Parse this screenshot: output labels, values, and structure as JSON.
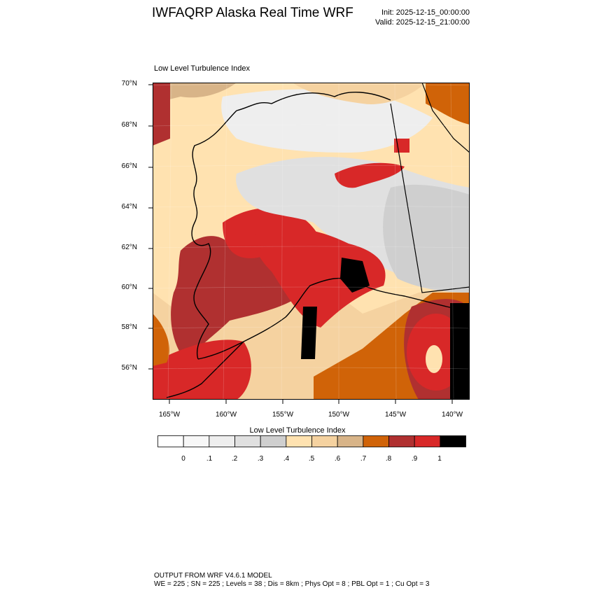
{
  "header": {
    "title": "IWFAQRP Alaska Real Time WRF",
    "init": "Init: 2025-12-15_00:00:00",
    "valid": "Valid: 2025-12-15_21:00:00"
  },
  "map": {
    "title": "Low Level Turbulence Index",
    "lat_labels": [
      "70°N",
      "68°N",
      "66°N",
      "64°N",
      "62°N",
      "60°N",
      "58°N",
      "56°N"
    ],
    "lon_labels": [
      "165°W",
      "160°W",
      "155°W",
      "150°W",
      "145°W",
      "140°W"
    ]
  },
  "colorbar": {
    "title": "Low Level Turbulence Index",
    "labels": [
      "0",
      ".1",
      ".2",
      ".3",
      ".4",
      ".5",
      ".6",
      ".7",
      ".8",
      ".9",
      "1"
    ],
    "colors": [
      "#ffffff",
      "#f7f7f7",
      "#eeeeee",
      "#e0e0e0",
      "#cfcfcf",
      "#ffe2b0",
      "#f5d2a0",
      "#d8b488",
      "#d06308",
      "#b03030",
      "#d82828",
      "#000000"
    ]
  },
  "footer": {
    "line1": "OUTPUT FROM WRF V4.6.1 MODEL",
    "line2": "WE = 225 ; SN = 225 ; Levels = 38 ; Dis = 8km ; Phys Opt = 8 ; PBL Opt = 1 ; Cu Opt = 3"
  }
}
